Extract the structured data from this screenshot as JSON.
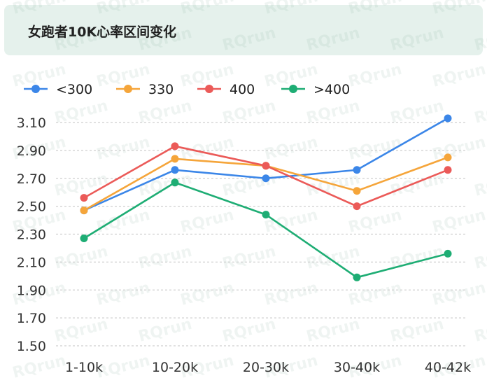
{
  "header": {
    "title": "女跑者10K心率区间变化"
  },
  "watermark": "RQrun",
  "chart_data": {
    "type": "line",
    "title": "女跑者10K心率区间变化",
    "categories": [
      "1-10k",
      "10-20k",
      "20-30k",
      "30-40k",
      "40-42k"
    ],
    "yticks": [
      "1.50",
      "1.70",
      "1.90",
      "2.10",
      "2.30",
      "2.50",
      "2.70",
      "2.90",
      "3.10"
    ],
    "ylim": [
      1.5,
      3.1
    ],
    "grid": true,
    "legend_position": "top-left",
    "series": [
      {
        "name": "<300",
        "color": "#3b86e8",
        "values": [
          2.47,
          2.76,
          2.7,
          2.76,
          3.13
        ]
      },
      {
        "name": "330",
        "color": "#f5a53a",
        "values": [
          2.47,
          2.84,
          2.79,
          2.61,
          2.85
        ]
      },
      {
        "name": "400",
        "color": "#eb5a58",
        "values": [
          2.56,
          2.93,
          2.79,
          2.5,
          2.76
        ]
      },
      {
        "name": ">400",
        "color": "#1ead74",
        "values": [
          2.27,
          2.67,
          2.44,
          1.99,
          2.16
        ]
      }
    ]
  }
}
